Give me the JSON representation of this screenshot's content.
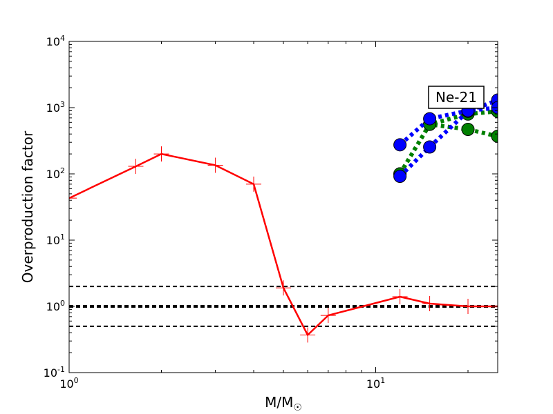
{
  "chart_data": {
    "type": "line",
    "title": "",
    "xlabel": {
      "main": "M/M",
      "sub": "☉"
    },
    "ylabel": "Overproduction factor",
    "xscale": "log",
    "yscale": "log",
    "xlim": [
      1,
      25
    ],
    "ylim": [
      0.1,
      10000
    ],
    "x_ticks": [
      {
        "value": 1,
        "base": "10",
        "exp": "0"
      },
      {
        "value": 10,
        "base": "10",
        "exp": "1"
      }
    ],
    "y_ticks": [
      {
        "value": 0.1,
        "base": "10",
        "exp": "-1"
      },
      {
        "value": 1,
        "base": "10",
        "exp": "0"
      },
      {
        "value": 10,
        "base": "10",
        "exp": "1"
      },
      {
        "value": 100,
        "base": "10",
        "exp": "2"
      },
      {
        "value": 1000,
        "base": "10",
        "exp": "3"
      },
      {
        "value": 10000,
        "base": "10",
        "exp": "4"
      }
    ],
    "grid": false,
    "annotation": "Ne-21",
    "reference_lines": [
      {
        "y": 2,
        "style": "dashed-thin",
        "color": "#000000"
      },
      {
        "y": 1,
        "style": "dashed-thick",
        "color": "#000000"
      },
      {
        "y": 0.5,
        "style": "dashed-thin",
        "color": "#000000"
      }
    ],
    "series": [
      {
        "color": "#ff0000",
        "line": "solid",
        "marker": "plus",
        "x": [
          1,
          1.65,
          2,
          3,
          4,
          5,
          6,
          7,
          12,
          15,
          20,
          25
        ],
        "y": [
          43,
          130,
          200,
          135,
          70,
          1.9,
          0.37,
          0.73,
          1.4,
          1.1,
          1.0,
          1.0
        ]
      },
      {
        "color": "#008000",
        "line": "dotted",
        "marker": "circle",
        "x": [
          12,
          15,
          20,
          25
        ],
        "y": [
          100,
          560,
          470,
          370
        ]
      },
      {
        "color": "#008000",
        "line": "dotted",
        "marker": "circle",
        "x": [
          12,
          15,
          20,
          25
        ],
        "y": [
          100,
          560,
          800,
          880
        ]
      },
      {
        "color": "#0000ff",
        "line": "dotted",
        "marker": "circle",
        "x": [
          12,
          15,
          20,
          25
        ],
        "y": [
          92,
          255,
          880,
          1300
        ]
      },
      {
        "color": "#0000ff",
        "line": "dotted",
        "marker": "circle",
        "x": [
          12,
          15,
          20,
          25
        ],
        "y": [
          275,
          680,
          900,
          1000
        ]
      }
    ]
  }
}
